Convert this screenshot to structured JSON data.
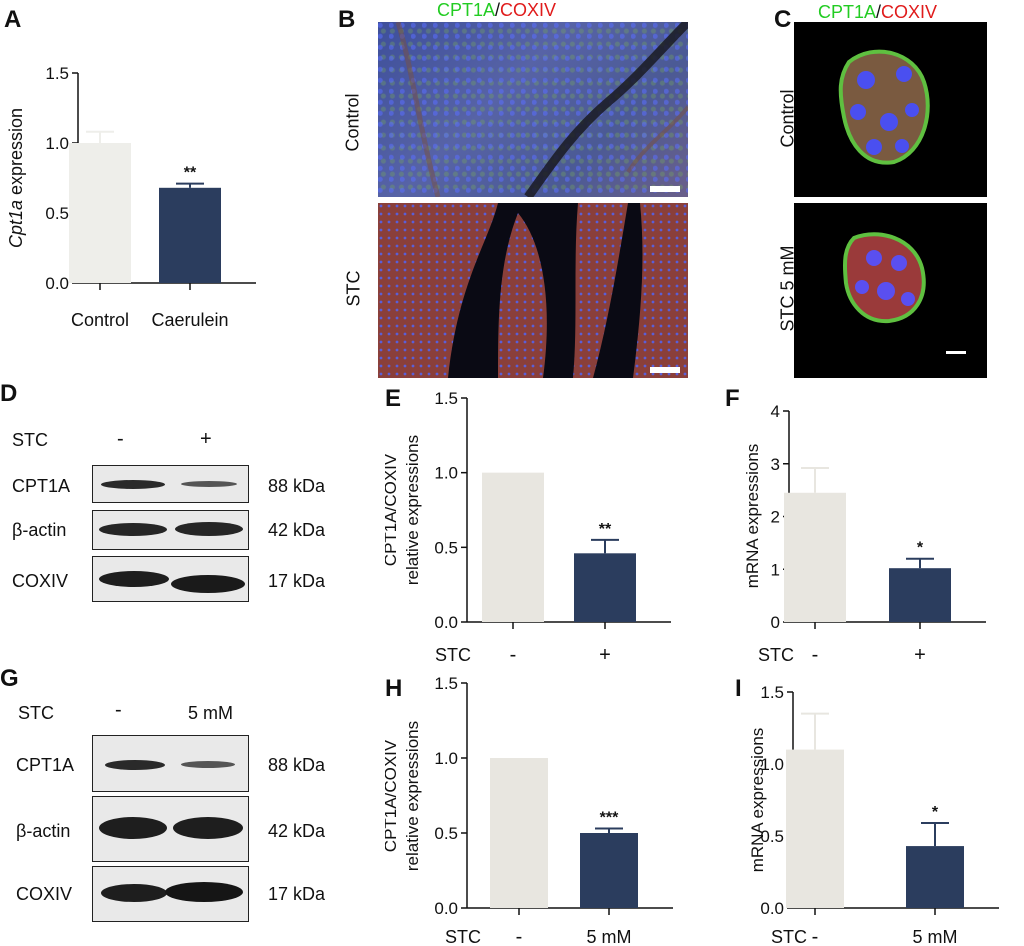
{
  "panels": {
    "A": "A",
    "B": "B",
    "C": "C",
    "D": "D",
    "E": "E",
    "F": "F",
    "G": "G",
    "H": "H",
    "I": "I"
  },
  "stain": {
    "green": "CPT1A",
    "slash": "/",
    "red": "COXIV"
  },
  "rows": {
    "control": "Control",
    "stc": "STC",
    "stc5": "STC 5 mM"
  },
  "scalebar": "50 μm",
  "blots": {
    "D": {
      "header": "STC",
      "lane1": "-",
      "lane2": "+",
      "rows": [
        {
          "name": "CPT1A",
          "size": "88 kDa"
        },
        {
          "name": "β-actin",
          "size": "42 kDa"
        },
        {
          "name": "COXIV",
          "size": "17 kDa"
        }
      ]
    },
    "G": {
      "header": "STC",
      "lane1": "-",
      "lane2": "5 mM",
      "rows": [
        {
          "name": "CPT1A",
          "size": "88 kDa"
        },
        {
          "name": "β-actin",
          "size": "42 kDa"
        },
        {
          "name": "COXIV",
          "size": "17 kDa"
        }
      ]
    }
  },
  "colors": {
    "light": "#e8e6e0",
    "lightA": "#eeeeea",
    "dark": "#2b3d5e",
    "green": "#22cc22",
    "red": "#e01b1b"
  },
  "chart_data": [
    {
      "id": "A",
      "type": "bar",
      "categories": [
        "Control",
        "Caerulein"
      ],
      "values": [
        1.0,
        0.68
      ],
      "errors": [
        0.08,
        0.03
      ],
      "significance": [
        "",
        "**"
      ],
      "ylabel_italic": "Cpt1a",
      "ylabel_rest": " expression",
      "ylim": [
        0,
        1.5
      ],
      "yticks": [
        "0.0",
        "0.5",
        "1.0",
        "1.5"
      ],
      "group_label": ""
    },
    {
      "id": "E",
      "type": "bar",
      "categories": [
        "-",
        "+"
      ],
      "values": [
        1.0,
        0.46
      ],
      "errors": [
        0,
        0.09
      ],
      "significance": [
        "",
        "**"
      ],
      "ylabel": [
        "CPT1A/COXIV",
        "relative expressions"
      ],
      "ylim": [
        0,
        1.5
      ],
      "yticks": [
        "0.0",
        "0.5",
        "1.0",
        "1.5"
      ],
      "group_label": "STC"
    },
    {
      "id": "F",
      "type": "bar",
      "categories": [
        "-",
        "+"
      ],
      "values": [
        2.45,
        1.02
      ],
      "errors": [
        0.47,
        0.18
      ],
      "significance": [
        "",
        "*"
      ],
      "ylabel": [
        "mRNA expressions"
      ],
      "ylim": [
        0,
        4
      ],
      "yticks": [
        "0",
        "1",
        "2",
        "3",
        "4"
      ],
      "group_label": "STC"
    },
    {
      "id": "H",
      "type": "bar",
      "categories": [
        "-",
        "5 mM"
      ],
      "values": [
        1.0,
        0.5
      ],
      "errors": [
        0,
        0.03
      ],
      "significance": [
        "",
        "***"
      ],
      "ylabel": [
        "CPT1A/COXIV",
        "relative expressions"
      ],
      "ylim": [
        0,
        1.5
      ],
      "yticks": [
        "0.0",
        "0.5",
        "1.0",
        "1.5"
      ],
      "group_label": "STC"
    },
    {
      "id": "I",
      "type": "bar",
      "categories": [
        "-",
        "5 mM"
      ],
      "values": [
        1.1,
        0.43
      ],
      "errors": [
        0.25,
        0.16
      ],
      "significance": [
        "",
        "*"
      ],
      "ylabel": [
        "mRNA expressions"
      ],
      "ylim": [
        0,
        1.5
      ],
      "yticks": [
        "0.0",
        "0.5",
        "1.0",
        "1.5"
      ],
      "group_label": "STC"
    }
  ]
}
